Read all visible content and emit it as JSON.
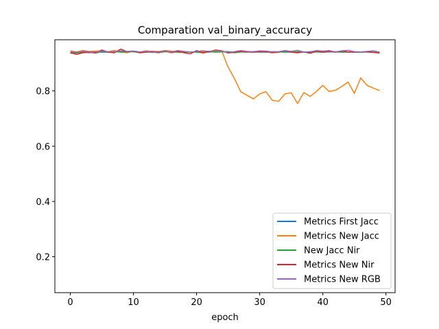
{
  "chart_data": {
    "type": "line",
    "title": "Comparation val_binary_accuracy",
    "xlabel": "epoch",
    "ylabel": "",
    "xlim": [
      -2.45,
      51.45
    ],
    "ylim": [
      0.07,
      0.985
    ],
    "xticks": [
      0,
      10,
      20,
      30,
      40,
      50
    ],
    "yticks": [
      0.2,
      0.4,
      0.6,
      0.8
    ],
    "ytick_labels": [
      "0.2",
      "0.4",
      "0.6",
      "0.8"
    ],
    "grid": false,
    "legend_position": "lower-right",
    "x": [
      0,
      1,
      2,
      3,
      4,
      5,
      6,
      7,
      8,
      9,
      10,
      11,
      12,
      13,
      14,
      15,
      16,
      17,
      18,
      19,
      20,
      21,
      22,
      23,
      24,
      25,
      26,
      27,
      28,
      29,
      30,
      31,
      32,
      33,
      34,
      35,
      36,
      37,
      38,
      39,
      40,
      41,
      42,
      43,
      44,
      45,
      46,
      47,
      48,
      49
    ],
    "series": [
      {
        "name": "Metrics First Jacc",
        "color": "#1f77b4",
        "values": [
          0.936,
          0.938,
          0.94,
          0.938,
          0.942,
          0.94,
          0.94,
          0.941,
          0.943,
          0.942,
          0.942,
          0.94,
          0.941,
          0.939,
          0.941,
          0.942,
          0.943,
          0.941,
          0.94,
          0.941,
          0.94,
          0.942,
          0.94,
          0.943,
          0.941,
          0.942,
          0.94,
          0.941,
          0.942,
          0.94,
          0.941,
          0.94,
          0.942,
          0.941,
          0.941,
          0.94,
          0.941,
          0.94,
          0.942,
          0.941,
          0.94,
          0.941,
          0.942,
          0.94,
          0.941,
          0.94,
          0.94,
          0.941,
          0.94,
          0.938
        ]
      },
      {
        "name": "Metrics New Jacc",
        "color": "#ff7f0e",
        "values": [
          0.945,
          0.941,
          0.946,
          0.943,
          0.944,
          0.945,
          0.942,
          0.946,
          0.941,
          0.938,
          0.944,
          0.94,
          0.945,
          0.943,
          0.942,
          0.946,
          0.944,
          0.942,
          0.943,
          0.94,
          0.942,
          0.941,
          0.944,
          0.942,
          0.944,
          0.886,
          0.845,
          0.797,
          0.784,
          0.771,
          0.789,
          0.797,
          0.766,
          0.762,
          0.789,
          0.793,
          0.754,
          0.794,
          0.78,
          0.798,
          0.82,
          0.798,
          0.802,
          0.816,
          0.832,
          0.791,
          0.847,
          0.82,
          0.81,
          0.801
        ]
      },
      {
        "name": "New Jacc Nir",
        "color": "#2ca02c",
        "values": [
          0.938,
          0.937,
          0.941,
          0.94,
          0.937,
          0.942,
          0.94,
          0.942,
          0.94,
          0.941,
          0.942,
          0.938,
          0.941,
          0.94,
          0.938,
          0.942,
          0.941,
          0.94,
          0.939,
          0.941,
          0.94,
          0.938,
          0.942,
          0.94,
          0.941,
          0.942,
          0.938,
          0.941,
          0.94,
          0.942,
          0.94,
          0.941,
          0.939,
          0.941,
          0.94,
          0.941,
          0.942,
          0.94,
          0.938,
          0.941,
          0.94,
          0.942,
          0.94,
          0.941,
          0.94,
          0.941,
          0.94,
          0.941,
          0.94,
          0.938
        ]
      },
      {
        "name": "Metrics New Nir",
        "color": "#d62728",
        "values": [
          0.938,
          0.932,
          0.938,
          0.94,
          0.937,
          0.948,
          0.94,
          0.938,
          0.951,
          0.942,
          0.944,
          0.938,
          0.94,
          0.943,
          0.941,
          0.944,
          0.938,
          0.943,
          0.938,
          0.934,
          0.946,
          0.937,
          0.942,
          0.948,
          0.945,
          0.937,
          0.94,
          0.943,
          0.941,
          0.94,
          0.942,
          0.942,
          0.938,
          0.94,
          0.946,
          0.94,
          0.938,
          0.941,
          0.936,
          0.944,
          0.94,
          0.943,
          0.94,
          0.944,
          0.941,
          0.94,
          0.941,
          0.941,
          0.939,
          0.937
        ]
      },
      {
        "name": "Metrics New RGB",
        "color": "#9467bd",
        "values": [
          0.941,
          0.94,
          0.943,
          0.941,
          0.94,
          0.944,
          0.942,
          0.941,
          0.945,
          0.943,
          0.944,
          0.941,
          0.943,
          0.941,
          0.938,
          0.945,
          0.94,
          0.946,
          0.943,
          0.94,
          0.943,
          0.945,
          0.943,
          0.946,
          0.944,
          0.939,
          0.942,
          0.946,
          0.943,
          0.942,
          0.945,
          0.944,
          0.941,
          0.942,
          0.946,
          0.943,
          0.947,
          0.94,
          0.941,
          0.946,
          0.944,
          0.946,
          0.941,
          0.945,
          0.947,
          0.942,
          0.941,
          0.943,
          0.945,
          0.94
        ]
      }
    ]
  }
}
